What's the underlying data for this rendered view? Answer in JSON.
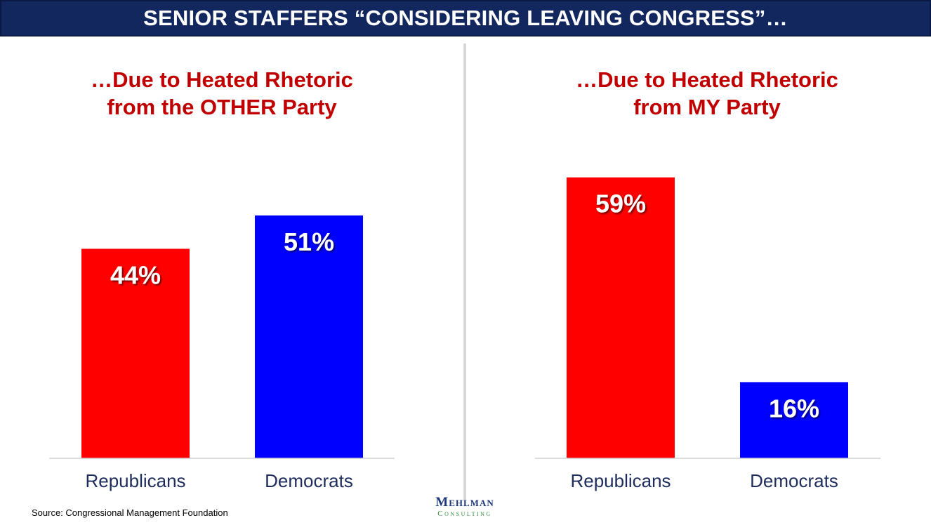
{
  "header": {
    "title": "SENIOR STAFFERS “CONSIDERING LEAVING CONGRESS”…"
  },
  "colors": {
    "header_bg": "#13275f",
    "title_red": "#c00000",
    "republican": "#ff0000",
    "democrat": "#0000ff"
  },
  "chart_data": [
    {
      "type": "bar",
      "title_lines": [
        "…Due to Heated Rhetoric",
        "from the OTHER Party"
      ],
      "categories": [
        "Republicans",
        "Democrats"
      ],
      "values": [
        44,
        51
      ],
      "value_labels": [
        "44%",
        "51%"
      ],
      "bar_colors": [
        "#ff0000",
        "#0000ff"
      ],
      "ylim": [
        0,
        65
      ],
      "grid": false
    },
    {
      "type": "bar",
      "title_lines": [
        "…Due to Heated Rhetoric",
        "from MY Party"
      ],
      "categories": [
        "Republicans",
        "Democrats"
      ],
      "values": [
        59,
        16
      ],
      "value_labels": [
        "59%",
        "16%"
      ],
      "bar_colors": [
        "#ff0000",
        "#0000ff"
      ],
      "ylim": [
        0,
        65
      ],
      "grid": false
    }
  ],
  "footer": {
    "source": "Source: Congressional Management Foundation",
    "logo_top": "Mehlman",
    "logo_bottom": "Consulting"
  }
}
